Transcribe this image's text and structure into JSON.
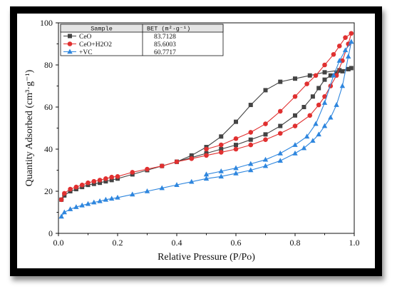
{
  "chart_data": {
    "type": "scatter",
    "xlabel": "Relative Pressure (P/Po)",
    "ylabel": "Quantity Adsorbed (cm³·g⁻¹)",
    "xlim": [
      0.0,
      1.0
    ],
    "ylim": [
      0,
      100
    ],
    "xticks": [
      "0.0",
      "0.2",
      "0.4",
      "0.6",
      "0.8",
      "1.0"
    ],
    "yticks": [
      "0",
      "20",
      "40",
      "60",
      "80",
      "100"
    ],
    "legend": {
      "placement": "top-left",
      "header_sample": "Sample",
      "header_bet": "BET (m²·g⁻¹)"
    },
    "series": [
      {
        "name": "CeO",
        "bet": "83.7128",
        "color": "#444444",
        "marker": "square",
        "x": [
          0.01,
          0.02,
          0.04,
          0.06,
          0.08,
          0.1,
          0.12,
          0.14,
          0.16,
          0.18,
          0.2,
          0.25,
          0.3,
          0.35,
          0.4,
          0.45,
          0.5,
          0.55,
          0.6,
          0.65,
          0.7,
          0.75,
          0.8,
          0.83,
          0.86,
          0.88,
          0.9,
          0.92,
          0.94,
          0.96,
          0.98,
          0.99,
          0.98,
          0.95,
          0.9,
          0.85,
          0.8,
          0.75,
          0.7,
          0.65,
          0.6,
          0.55,
          0.5,
          0.45,
          0.4
        ],
        "y": [
          16,
          18,
          20,
          21,
          22,
          23,
          23.5,
          24,
          24.7,
          25.3,
          26,
          28,
          30,
          32,
          34,
          36,
          38,
          40,
          42,
          44.5,
          47,
          51,
          56,
          60,
          65,
          69,
          73,
          75,
          76,
          77,
          78,
          78.5,
          78,
          77.5,
          76.5,
          75,
          73.5,
          72,
          68,
          61,
          53,
          46,
          41,
          37,
          34
        ]
      },
      {
        "name": "CeO+H2O2",
        "bet": "85.6003",
        "color": "#e03030",
        "marker": "circle",
        "x": [
          0.01,
          0.02,
          0.04,
          0.06,
          0.08,
          0.1,
          0.12,
          0.14,
          0.16,
          0.18,
          0.2,
          0.25,
          0.3,
          0.35,
          0.4,
          0.45,
          0.5,
          0.55,
          0.6,
          0.65,
          0.7,
          0.75,
          0.8,
          0.85,
          0.88,
          0.9,
          0.92,
          0.94,
          0.96,
          0.98,
          0.99,
          0.97,
          0.95,
          0.93,
          0.9,
          0.87,
          0.84,
          0.8,
          0.75,
          0.7,
          0.65,
          0.6,
          0.55,
          0.5
        ],
        "y": [
          16,
          19,
          21,
          22,
          23,
          24,
          24.7,
          25.3,
          26,
          26.7,
          27,
          29,
          30.5,
          32,
          34,
          35.5,
          37,
          38.5,
          40,
          42,
          44.5,
          47.5,
          51,
          56,
          61,
          65,
          70,
          75,
          82,
          90,
          95,
          93,
          89,
          85,
          80,
          75,
          71,
          65,
          58,
          52,
          48,
          45,
          42,
          40
        ]
      },
      {
        "name": "+VC",
        "bet": "60.7717",
        "color": "#2e86de",
        "marker": "triangle",
        "x": [
          0.01,
          0.02,
          0.04,
          0.06,
          0.08,
          0.1,
          0.12,
          0.14,
          0.16,
          0.18,
          0.2,
          0.25,
          0.3,
          0.35,
          0.4,
          0.45,
          0.5,
          0.55,
          0.6,
          0.65,
          0.7,
          0.75,
          0.8,
          0.83,
          0.86,
          0.88,
          0.9,
          0.92,
          0.94,
          0.96,
          0.98,
          0.99,
          0.97,
          0.95,
          0.93,
          0.9,
          0.87,
          0.84,
          0.8,
          0.75,
          0.7,
          0.65,
          0.6,
          0.55,
          0.5
        ],
        "y": [
          8,
          10,
          11.5,
          12.5,
          13.3,
          14,
          14.7,
          15.3,
          16,
          16.5,
          17,
          18.5,
          20,
          21.5,
          23,
          24.5,
          26,
          27,
          28.5,
          30,
          32,
          34.5,
          38,
          40.5,
          44,
          47,
          51,
          55,
          61,
          70,
          84,
          91,
          87,
          82,
          75,
          62,
          52,
          46,
          42,
          38,
          35,
          33,
          31,
          29.5,
          28
        ]
      }
    ]
  }
}
